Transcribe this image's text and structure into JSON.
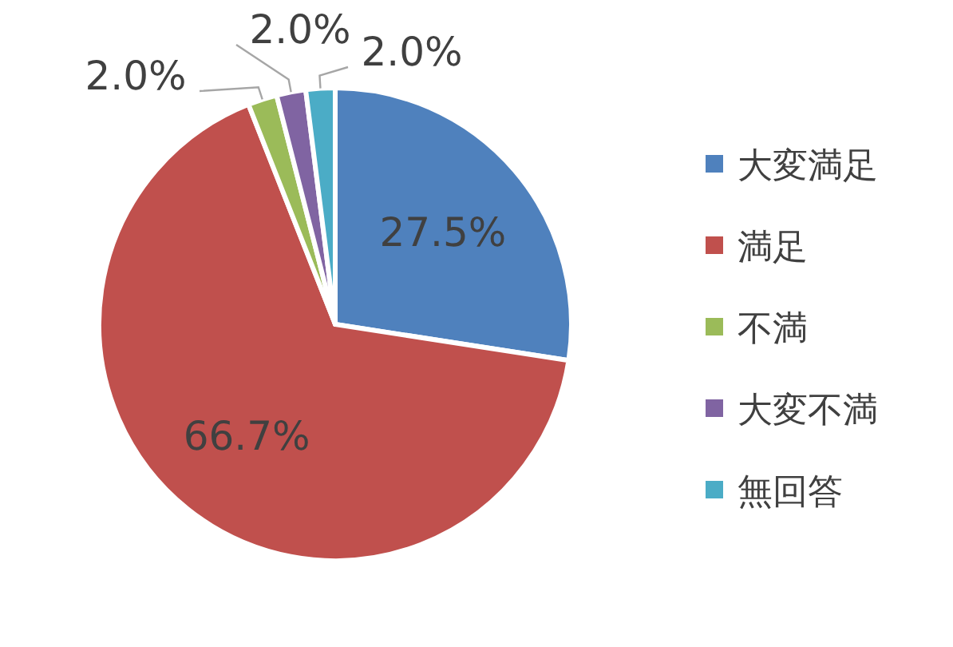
{
  "chart_data": {
    "type": "pie",
    "categories": [
      "大変満足",
      "満足",
      "不満",
      "大変不満",
      "無回答"
    ],
    "values": [
      27.5,
      66.7,
      2.0,
      2.0,
      2.0
    ],
    "colors": [
      "#4f81bd",
      "#c0504d",
      "#9bbb59",
      "#8064a2",
      "#4bacc6"
    ],
    "value_labels": [
      "27.5%",
      "66.7%",
      "2.0%",
      "2.0%",
      "2.0%"
    ],
    "legend": "right"
  }
}
